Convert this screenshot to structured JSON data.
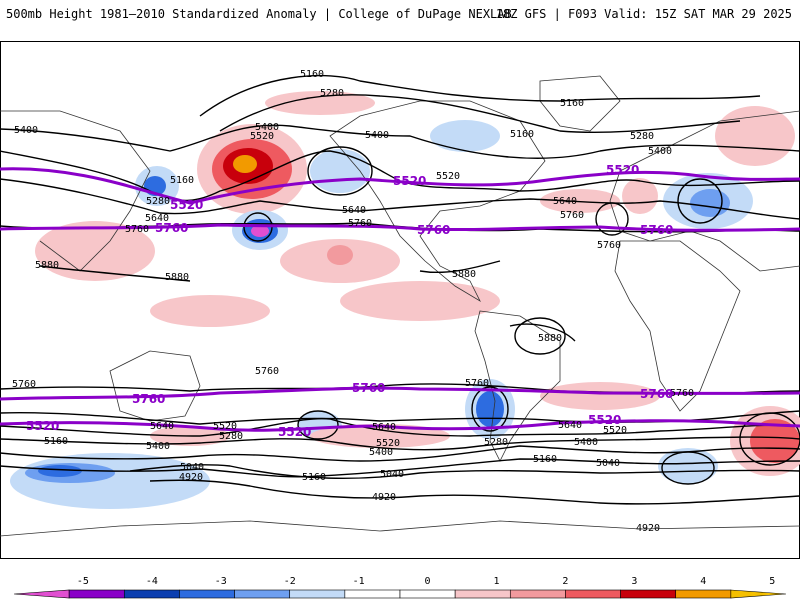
{
  "header": {
    "title": "500mb Height 1981–2010 Standardized Anomaly | College of DuPage NEXLAB",
    "run_info": "18Z GFS | F093 Valid: 15Z SAT MAR 29 2025"
  },
  "contour_labels": {
    "c4920": "4920",
    "c5040": "5040",
    "c5160": "5160",
    "c5280": "5280",
    "c5400": "5400",
    "c5520": "5520",
    "c5640": "5640",
    "c5760": "5760",
    "c5880": "5880"
  },
  "reference_contours": [
    "5520",
    "5760"
  ],
  "colorbar": {
    "ticks": [
      "-5",
      "-4",
      "-3",
      "-2",
      "-1",
      "0",
      "1",
      "2",
      "3",
      "4",
      "5"
    ],
    "colors": [
      "#e14fd1",
      "#8a00c8",
      "#0c3fb0",
      "#2d6ce0",
      "#6e9ff0",
      "#c3dbf7",
      "#ffffff",
      "#ffffff",
      "#f7c6c9",
      "#f29a9e",
      "#ee5a60",
      "#c8000c",
      "#f29a00",
      "#f5c000"
    ],
    "levels": [
      -5,
      -4,
      -3,
      -2,
      -1,
      0,
      1,
      2,
      3,
      4,
      5
    ]
  }
}
